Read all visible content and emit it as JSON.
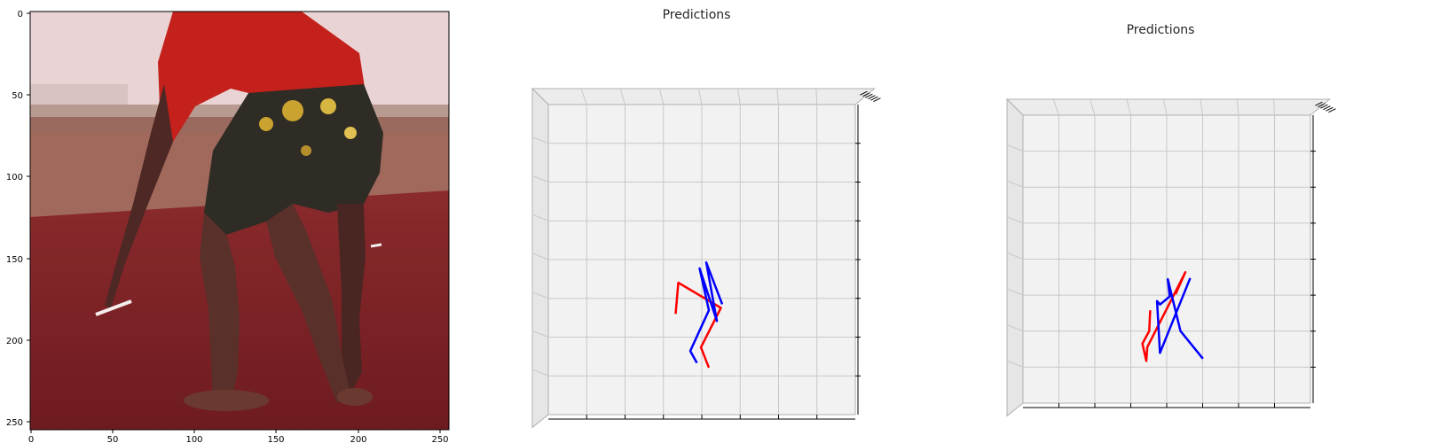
{
  "chart_data": [
    {
      "type": "image",
      "description_key": "input-frame",
      "x_ticks": [
        "0",
        "50",
        "100",
        "150",
        "200",
        "250"
      ],
      "y_ticks": [
        "0",
        "50",
        "100",
        "150",
        "200",
        "250"
      ],
      "xlim": [
        0,
        256
      ],
      "ylim": [
        256,
        0
      ],
      "colors": {
        "shirt": "#c4211c",
        "floor": "#7a1f24",
        "wall": "#e8cfd0",
        "skin": "#5a302a",
        "shorts": "#2c2a26"
      }
    },
    {
      "type": "3d-line",
      "title": "Predictions",
      "colors": {
        "left": "#ff0000",
        "right": "#0000ff",
        "pane": "#f2f2f2",
        "grid": "#c8c8c8"
      },
      "red": [
        [
          0.41,
          0.55
        ],
        [
          0.43,
          0.29
        ],
        [
          0.75,
          0.5
        ],
        [
          0.6,
          0.83
        ],
        [
          0.66,
          1.0
        ]
      ],
      "blue": [
        [
          0.76,
          0.47
        ],
        [
          0.64,
          0.12
        ],
        [
          0.72,
          0.61
        ],
        [
          0.59,
          0.17
        ],
        [
          0.66,
          0.52
        ],
        [
          0.52,
          0.86
        ],
        [
          0.57,
          0.96
        ]
      ]
    },
    {
      "type": "3d-line",
      "title": "Predictions",
      "colors": {
        "left": "#ff0000",
        "right": "#0000ff",
        "pane": "#f2f2f2",
        "grid": "#c8c8c8"
      },
      "red": [
        [
          0.24,
          0.54
        ],
        [
          0.23,
          0.72
        ],
        [
          0.16,
          0.83
        ],
        [
          0.2,
          0.98
        ],
        [
          0.21,
          0.86
        ],
        [
          0.6,
          0.21
        ],
        [
          0.5,
          0.4
        ]
      ],
      "blue": [
        [
          0.65,
          0.26
        ],
        [
          0.34,
          0.91
        ],
        [
          0.31,
          0.46
        ],
        [
          0.34,
          0.49
        ],
        [
          0.44,
          0.42
        ],
        [
          0.42,
          0.27
        ],
        [
          0.55,
          0.72
        ],
        [
          0.78,
          0.96
        ]
      ]
    }
  ]
}
